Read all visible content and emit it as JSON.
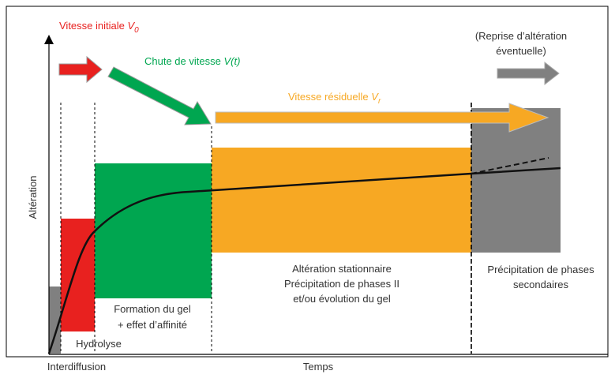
{
  "labels": {
    "initial_rate": {
      "text": "Vitesse initiale",
      "symbol": "V",
      "subscript": "0"
    },
    "rate_drop": {
      "text": "Chute de vitesse",
      "symbol": "V(t)"
    },
    "residual_rate": {
      "text": "Vitesse résiduelle",
      "symbol": "V",
      "subscript": "r"
    },
    "resumption": [
      "(Reprise d’altération",
      "éventuelle)"
    ]
  },
  "axes": {
    "y_label": "Altération",
    "x_label": "Temps"
  },
  "phases": {
    "interdiffusion": "Interdiffusion",
    "hydrolysis": "Hydrolyse",
    "gel": [
      "Formation du gel",
      "+ effet d’affinité"
    ],
    "stationary": [
      "Altération stationnaire",
      "Précipitation de phases II",
      "et/ou évolution du gel"
    ],
    "secondary": [
      "Précipitation de phases",
      "secondaires"
    ]
  }
}
